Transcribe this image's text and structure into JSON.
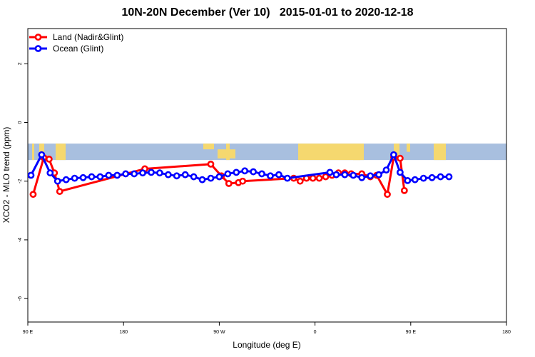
{
  "chart_data": {
    "type": "line",
    "title": "10N-20N December (Ver 10)   2015-01-01 to 2020-12-18",
    "xlabel": "Longitude (deg E)",
    "ylabel": "XCO2 - MLO trend (ppm)",
    "xlim": [
      90,
      450
    ],
    "ylim": [
      -6.8,
      3.2
    ],
    "x_ticks": [
      {
        "value": 90,
        "label": "90 E"
      },
      {
        "value": 180,
        "label": "180"
      },
      {
        "value": 270,
        "label": "90 W"
      },
      {
        "value": 360,
        "label": "0"
      },
      {
        "value": 450,
        "label": "90 E"
      },
      {
        "value": 540,
        "label": "180"
      }
    ],
    "y_ticks": [
      {
        "value": 2,
        "label": "2"
      },
      {
        "value": 0,
        "label": "0"
      },
      {
        "value": -2,
        "label": "-2"
      },
      {
        "value": -4,
        "label": "-4"
      },
      {
        "value": -6,
        "label": "-6"
      }
    ],
    "legend_position": "top-left",
    "background_map": {
      "description_colors": {
        "ocean": "#a8bfdf",
        "land": "#f5d86f"
      },
      "band_y_range": [
        -1.28,
        -0.72
      ]
    },
    "series": [
      {
        "name": "Land (Nadir&Glint)",
        "color": "#ff0000",
        "points": [
          [
            95,
            -2.45
          ],
          [
            105,
            -1.2
          ],
          [
            110,
            -1.25
          ],
          [
            115,
            -1.72
          ],
          [
            120,
            -2.35
          ],
          [
            200,
            -1.58
          ],
          [
            262,
            -1.42
          ],
          [
            272,
            -1.82
          ],
          [
            279,
            -2.08
          ],
          [
            288,
            -2.05
          ],
          [
            292,
            -2.0
          ],
          [
            340,
            -1.9
          ],
          [
            346,
            -2.0
          ],
          [
            352,
            -1.9
          ],
          [
            358,
            -1.9
          ],
          [
            364,
            -1.9
          ],
          [
            370,
            -1.85
          ],
          [
            376,
            -1.8
          ],
          [
            382,
            -1.72
          ],
          [
            388,
            -1.72
          ],
          [
            394,
            -1.75
          ],
          [
            404,
            -1.75
          ],
          [
            412,
            -1.85
          ],
          [
            418,
            -1.8
          ],
          [
            428,
            -2.45
          ],
          [
            434,
            -1.18
          ],
          [
            440,
            -1.22
          ],
          [
            444,
            -2.32
          ]
        ]
      },
      {
        "name": "Ocean (Glint)",
        "color": "#0000ff",
        "points": [
          [
            93,
            -1.8
          ],
          [
            103,
            -1.1
          ],
          [
            111,
            -1.72
          ],
          [
            118,
            -2.0
          ],
          [
            126,
            -1.95
          ],
          [
            134,
            -1.9
          ],
          [
            142,
            -1.88
          ],
          [
            150,
            -1.85
          ],
          [
            158,
            -1.85
          ],
          [
            166,
            -1.8
          ],
          [
            174,
            -1.8
          ],
          [
            182,
            -1.75
          ],
          [
            190,
            -1.75
          ],
          [
            198,
            -1.72
          ],
          [
            206,
            -1.7
          ],
          [
            214,
            -1.72
          ],
          [
            222,
            -1.78
          ],
          [
            230,
            -1.82
          ],
          [
            238,
            -1.78
          ],
          [
            246,
            -1.85
          ],
          [
            254,
            -1.95
          ],
          [
            262,
            -1.9
          ],
          [
            270,
            -1.85
          ],
          [
            278,
            -1.75
          ],
          [
            286,
            -1.7
          ],
          [
            294,
            -1.65
          ],
          [
            302,
            -1.68
          ],
          [
            310,
            -1.75
          ],
          [
            318,
            -1.82
          ],
          [
            326,
            -1.78
          ],
          [
            334,
            -1.9
          ],
          [
            374,
            -1.7
          ],
          [
            380,
            -1.78
          ],
          [
            388,
            -1.78
          ],
          [
            396,
            -1.8
          ],
          [
            404,
            -1.88
          ],
          [
            412,
            -1.82
          ],
          [
            420,
            -1.78
          ],
          [
            427,
            -1.62
          ],
          [
            434,
            -1.1
          ],
          [
            440,
            -1.7
          ],
          [
            447,
            -1.98
          ],
          [
            454,
            -1.95
          ],
          [
            462,
            -1.9
          ],
          [
            470,
            -1.88
          ],
          [
            478,
            -1.85
          ],
          [
            486,
            -1.85
          ]
        ]
      }
    ]
  }
}
